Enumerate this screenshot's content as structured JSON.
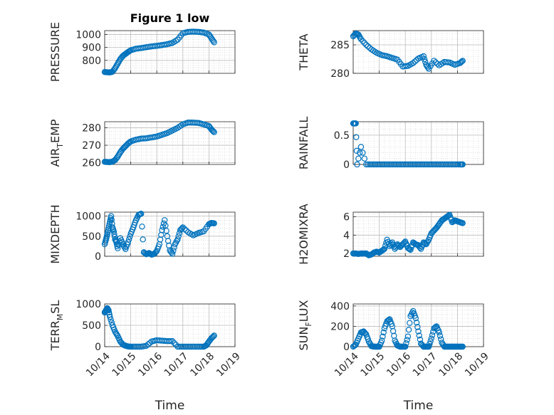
{
  "figure": {
    "series_color": "#0072BD",
    "x_axis_label": "Time",
    "x_tick_labels": [
      "10/14",
      "10/15",
      "10/16",
      "10/17",
      "10/18",
      "10/19"
    ]
  },
  "chart_data": [
    {
      "type": "scatter",
      "title": "Figure 1 low",
      "ylabel_main": "PRESSURE",
      "ylabel_sub": "",
      "xlim": [
        0,
        5
      ],
      "ylim": [
        700,
        1030
      ],
      "yticks": [
        800,
        900,
        1000
      ],
      "x": [
        0.0,
        0.1,
        0.2,
        0.3,
        0.4,
        0.5,
        0.6,
        0.7,
        0.8,
        0.9,
        1.0,
        1.2,
        1.4,
        1.6,
        1.8,
        2.0,
        2.2,
        2.4,
        2.6,
        2.8,
        3.0,
        3.2,
        3.4,
        3.6,
        3.8,
        4.0,
        4.1,
        4.2
      ],
      "y": [
        710,
        708,
        707,
        712,
        740,
        775,
        810,
        835,
        850,
        865,
        878,
        890,
        895,
        902,
        908,
        912,
        918,
        925,
        935,
        960,
        1010,
        1020,
        1022,
        1020,
        1015,
        1000,
        970,
        940
      ]
    },
    {
      "type": "scatter",
      "title": "",
      "ylabel_main": "THETA",
      "ylabel_sub": "",
      "xlim": [
        0,
        5
      ],
      "ylim": [
        280,
        287.5
      ],
      "yticks": [
        280,
        285
      ],
      "x": [
        0.0,
        0.1,
        0.2,
        0.3,
        0.5,
        0.7,
        0.9,
        1.1,
        1.3,
        1.5,
        1.7,
        1.9,
        2.1,
        2.3,
        2.5,
        2.7,
        2.8,
        2.9,
        3.1,
        3.3,
        3.5,
        3.7,
        3.9,
        4.1,
        4.2
      ],
      "y": [
        286.5,
        287,
        286.8,
        286,
        285,
        284.2,
        283.6,
        283.2,
        283,
        282.7,
        282.4,
        281.2,
        281.3,
        281.8,
        282.6,
        283,
        281.5,
        280.8,
        282.2,
        281.4,
        282,
        281.9,
        281.5,
        281.8,
        282.2
      ]
    },
    {
      "type": "scatter",
      "title": "",
      "ylabel_main": "AIR",
      "ylabel_sub": "T",
      "ylabel_rest": "EMP",
      "xlim": [
        0,
        5
      ],
      "ylim": [
        259,
        283.5
      ],
      "yticks": [
        260,
        270,
        280
      ],
      "x": [
        0.0,
        0.1,
        0.2,
        0.3,
        0.4,
        0.5,
        0.6,
        0.7,
        0.8,
        0.9,
        1.0,
        1.2,
        1.4,
        1.6,
        1.8,
        2.0,
        2.2,
        2.4,
        2.6,
        2.8,
        3.0,
        3.2,
        3.4,
        3.6,
        3.8,
        4.0,
        4.1,
        4.2
      ],
      "y": [
        260.5,
        260.4,
        260.3,
        260.6,
        261.5,
        263.5,
        266,
        268,
        269.5,
        271,
        272.2,
        273.2,
        273.8,
        274,
        274.5,
        275,
        276,
        277,
        278.5,
        280,
        282,
        283,
        283,
        282.8,
        282,
        281,
        279,
        277.5
      ]
    },
    {
      "type": "scatter",
      "title": "",
      "ylabel_main": "RAINFALL",
      "ylabel_sub": "",
      "xlim": [
        0,
        5
      ],
      "ylim": [
        0,
        0.73
      ],
      "yticks": [
        0,
        0.5
      ],
      "x": [
        0.0,
        0.05,
        0.1,
        0.15,
        0.3,
        0.5,
        0.7,
        0.9,
        1.1,
        1.3,
        1.5,
        1.7,
        1.9,
        2.1,
        2.3,
        2.5,
        2.7,
        2.9,
        3.1,
        3.3,
        3.5,
        3.7,
        3.9,
        4.1,
        4.2
      ],
      "y": [
        0.7,
        0.7,
        0.7,
        0.0,
        0.3,
        0,
        0,
        0,
        0,
        0,
        0,
        0,
        0,
        0,
        0,
        0,
        0,
        0,
        0,
        0,
        0,
        0,
        0,
        0,
        0
      ]
    },
    {
      "type": "scatter",
      "title": "",
      "ylabel_main": "MIXDEPTH",
      "ylabel_sub": "",
      "xlim": [
        0,
        5
      ],
      "ylim": [
        0,
        1100
      ],
      "yticks": [
        0,
        500,
        1000
      ],
      "x": [
        0.0,
        0.05,
        0.1,
        0.15,
        0.2,
        0.25,
        0.3,
        0.35,
        0.4,
        0.45,
        0.5,
        0.6,
        0.7,
        0.8,
        0.9,
        1.0,
        1.1,
        1.2,
        1.3,
        1.4,
        1.5,
        1.6,
        1.7,
        1.8,
        1.9,
        2.0,
        2.1,
        2.2,
        2.3,
        2.4,
        2.5,
        2.6,
        2.7,
        2.8,
        2.9,
        3.0,
        3.2,
        3.4,
        3.6,
        3.8,
        4.0,
        4.1,
        4.2
      ],
      "y": [
        300,
        420,
        550,
        700,
        850,
        1000,
        720,
        620,
        420,
        350,
        200,
        450,
        300,
        180,
        350,
        560,
        720,
        900,
        1030,
        1060,
        100,
        50,
        80,
        40,
        60,
        130,
        300,
        650,
        900,
        500,
        150,
        60,
        300,
        420,
        650,
        720,
        600,
        520,
        580,
        620,
        800,
        830,
        820
      ]
    },
    {
      "type": "scatter",
      "title": "",
      "ylabel_main": "H2OMIXRA",
      "ylabel_sub": "",
      "xlim": [
        0,
        5
      ],
      "ylim": [
        1.7,
        6.5
      ],
      "yticks": [
        2,
        4,
        6
      ],
      "x": [
        0.0,
        0.1,
        0.2,
        0.3,
        0.4,
        0.5,
        0.6,
        0.7,
        0.8,
        0.9,
        1.0,
        1.1,
        1.2,
        1.3,
        1.4,
        1.5,
        1.6,
        1.7,
        1.8,
        1.9,
        2.0,
        2.1,
        2.2,
        2.3,
        2.4,
        2.5,
        2.6,
        2.7,
        2.8,
        2.9,
        3.0,
        3.1,
        3.2,
        3.3,
        3.4,
        3.5,
        3.6,
        3.7,
        3.8,
        3.9,
        4.0,
        4.1,
        4.2
      ],
      "y": [
        2.0,
        2.0,
        1.95,
        2.0,
        2.0,
        2.0,
        1.8,
        1.9,
        2.1,
        2.2,
        2.1,
        2.3,
        2.5,
        3.5,
        2.8,
        3.2,
        2.5,
        3.0,
        2.7,
        3.0,
        3.3,
        2.6,
        2.4,
        3.2,
        3.0,
        2.9,
        2.5,
        3.2,
        3.0,
        3.5,
        4.2,
        4.5,
        4.8,
        5.2,
        5.6,
        5.8,
        6.0,
        6.2,
        5.4,
        5.6,
        5.5,
        5.4,
        5.3
      ]
    },
    {
      "type": "scatter",
      "title": "",
      "ylabel_main": "TERR",
      "ylabel_sub": "M",
      "ylabel_rest": "SL",
      "xlim": [
        0,
        5
      ],
      "ylim": [
        0,
        1000
      ],
      "yticks": [
        0,
        500,
        1000
      ],
      "x": [
        0.0,
        0.05,
        0.1,
        0.15,
        0.2,
        0.3,
        0.4,
        0.5,
        0.6,
        0.7,
        0.8,
        0.9,
        1.0,
        1.2,
        1.4,
        1.6,
        1.8,
        2.0,
        2.2,
        2.4,
        2.6,
        2.8,
        3.0,
        3.2,
        3.4,
        3.6,
        3.8,
        3.9,
        4.0,
        4.1,
        4.2
      ],
      "y": [
        800,
        850,
        900,
        850,
        700,
        500,
        350,
        250,
        120,
        50,
        20,
        5,
        0,
        0,
        0,
        20,
        120,
        150,
        140,
        130,
        130,
        0,
        0,
        0,
        0,
        0,
        0,
        30,
        120,
        200,
        260
      ]
    },
    {
      "type": "scatter",
      "title": "",
      "ylabel_main": "SUN",
      "ylabel_sub": "F",
      "ylabel_rest": "LUX",
      "xlim": [
        0,
        5
      ],
      "ylim": [
        0,
        420
      ],
      "yticks": [
        0,
        200,
        400
      ],
      "x": [
        0.0,
        0.1,
        0.2,
        0.3,
        0.4,
        0.5,
        0.6,
        0.7,
        0.8,
        0.9,
        1.0,
        1.1,
        1.2,
        1.3,
        1.4,
        1.5,
        1.6,
        1.7,
        1.8,
        1.9,
        2.0,
        2.1,
        2.2,
        2.3,
        2.4,
        2.5,
        2.6,
        2.7,
        2.8,
        2.9,
        3.0,
        3.1,
        3.2,
        3.3,
        3.4,
        3.5,
        3.6,
        3.7,
        3.8,
        3.9,
        4.0,
        4.1,
        4.2
      ],
      "y": [
        0,
        20,
        80,
        140,
        150,
        120,
        50,
        5,
        0,
        0,
        0,
        60,
        180,
        250,
        270,
        200,
        60,
        10,
        0,
        0,
        0,
        100,
        300,
        350,
        280,
        150,
        30,
        0,
        0,
        0,
        80,
        180,
        200,
        140,
        40,
        0,
        0,
        0,
        0,
        0,
        0,
        0,
        0
      ]
    }
  ]
}
